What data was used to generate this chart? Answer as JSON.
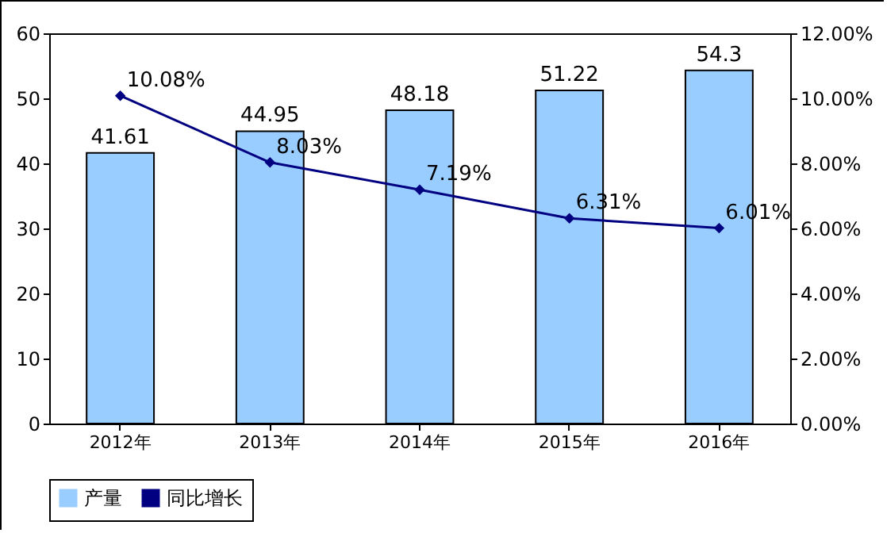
{
  "chart_data": {
    "type": "bar",
    "categories": [
      "2012年",
      "2013年",
      "2014年",
      "2015年",
      "2016年"
    ],
    "series": [
      {
        "name": "产量",
        "color": "#99ccff",
        "values": [
          41.61,
          44.95,
          48.18,
          51.22,
          54.3
        ],
        "value_labels": [
          "41.61",
          "44.95",
          "48.18",
          "51.22",
          "54.3"
        ]
      },
      {
        "name": "同比增长",
        "type": "line",
        "axis": "y2",
        "color": "#000080",
        "values": [
          10.08,
          8.03,
          7.19,
          6.31,
          6.01
        ],
        "value_labels": [
          "10.08%",
          "8.03%",
          "7.19%",
          "6.31%",
          "6.01%"
        ]
      }
    ],
    "ylim": [
      0,
      60
    ],
    "yticks": [
      0,
      10,
      20,
      30,
      40,
      50,
      60
    ],
    "y2lim": [
      0,
      12
    ],
    "y2ticks": [
      {
        "value": 0,
        "label": "0.00%"
      },
      {
        "value": 2,
        "label": "2.00%"
      },
      {
        "value": 4,
        "label": "4.00%"
      },
      {
        "value": 6,
        "label": "6.00%"
      },
      {
        "value": 8,
        "label": "8.00%"
      },
      {
        "value": 10,
        "label": "10.00%"
      },
      {
        "value": 12,
        "label": "12.00%"
      }
    ],
    "marker": "diamond",
    "legend": "bottom",
    "grid": false
  }
}
